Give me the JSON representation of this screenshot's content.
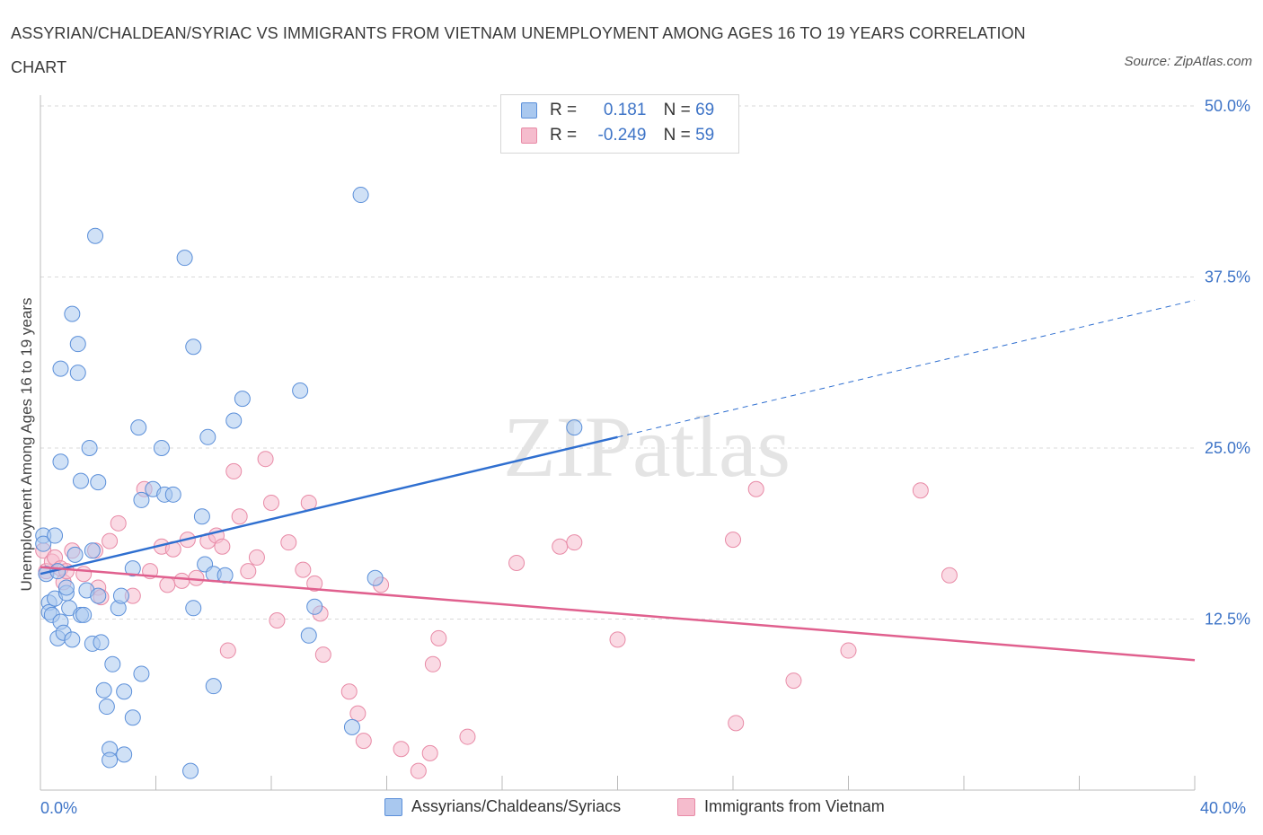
{
  "title": "ASSYRIAN/CHALDEAN/SYRIAC VS IMMIGRANTS FROM VIETNAM UNEMPLOYMENT AMONG AGES 16 TO 19 YEARS CORRELATION CHART",
  "source": "Source: ZipAtlas.com",
  "watermark": "ZIPatlas",
  "legend": {
    "series1": {
      "r_label": "R =",
      "r_value": "0.181",
      "n_label": "N =",
      "n_value": "69"
    },
    "series2": {
      "r_label": "R =",
      "r_value": "-0.249",
      "n_label": "N =",
      "n_value": "59"
    }
  },
  "colors": {
    "blue_fill": "#a9c8ef",
    "blue_stroke": "#5b8fd9",
    "blue_line": "#2f6fd0",
    "pink_fill": "#f5bccd",
    "pink_stroke": "#e88aa6",
    "pink_line": "#e0608e",
    "grid": "#d9d9d9",
    "axis_text": "#3e74c7"
  },
  "chart_data": {
    "type": "scatter",
    "title": "ASSYRIAN/CHALDEAN/SYRIAC VS IMMIGRANTS FROM VIETNAM UNEMPLOYMENT AMONG AGES 16 TO 19 YEARS CORRELATION CHART",
    "xlabel": "",
    "ylabel": "Unemployment Among Ages 16 to 19 years",
    "xlim": [
      0,
      40
    ],
    "ylim": [
      0,
      50
    ],
    "x_tick_labels": [
      "0.0%",
      "40.0%"
    ],
    "y_ticks": [
      12.5,
      25.0,
      37.5,
      50.0
    ],
    "y_tick_labels": [
      "12.5%",
      "25.0%",
      "37.5%",
      "50.0%"
    ],
    "grid": true,
    "legend_position": "top-center",
    "series": [
      {
        "name": "Assyrians/Chaldeans/Syriacs",
        "color": "#5b8fd9",
        "r": 0.181,
        "n": 69,
        "trend": {
          "x0": 0.0,
          "y0": 15.8,
          "x1": 20.0,
          "y1": 25.8,
          "dashed_to_x": 40.0,
          "dashed_to_y": 35.8
        },
        "points": [
          [
            0.1,
            18.6
          ],
          [
            0.1,
            18.0
          ],
          [
            0.2,
            15.8
          ],
          [
            0.3,
            13.7
          ],
          [
            0.3,
            13.0
          ],
          [
            0.4,
            12.8
          ],
          [
            0.5,
            18.6
          ],
          [
            0.5,
            14.0
          ],
          [
            0.6,
            11.1
          ],
          [
            0.6,
            16.0
          ],
          [
            0.7,
            12.3
          ],
          [
            0.7,
            24.0
          ],
          [
            0.7,
            30.8
          ],
          [
            0.8,
            11.5
          ],
          [
            0.9,
            14.4
          ],
          [
            0.9,
            14.8
          ],
          [
            1.0,
            13.3
          ],
          [
            1.1,
            11.0
          ],
          [
            1.1,
            34.8
          ],
          [
            1.2,
            17.2
          ],
          [
            1.3,
            32.6
          ],
          [
            1.3,
            30.5
          ],
          [
            1.4,
            12.8
          ],
          [
            1.4,
            22.6
          ],
          [
            1.5,
            12.8
          ],
          [
            1.6,
            14.6
          ],
          [
            1.7,
            25.0
          ],
          [
            1.8,
            17.5
          ],
          [
            1.8,
            10.7
          ],
          [
            1.9,
            40.5
          ],
          [
            2.0,
            14.2
          ],
          [
            2.0,
            22.5
          ],
          [
            2.1,
            10.8
          ],
          [
            2.2,
            7.3
          ],
          [
            2.3,
            6.1
          ],
          [
            2.4,
            3.0
          ],
          [
            2.4,
            2.2
          ],
          [
            2.5,
            9.2
          ],
          [
            2.7,
            13.3
          ],
          [
            2.8,
            14.2
          ],
          [
            2.9,
            7.2
          ],
          [
            2.9,
            2.6
          ],
          [
            3.2,
            5.3
          ],
          [
            3.2,
            16.2
          ],
          [
            3.4,
            26.5
          ],
          [
            3.5,
            8.5
          ],
          [
            3.5,
            21.2
          ],
          [
            3.9,
            22.0
          ],
          [
            4.2,
            25.0
          ],
          [
            4.3,
            21.6
          ],
          [
            4.6,
            21.6
          ],
          [
            5.0,
            38.9
          ],
          [
            5.2,
            1.4
          ],
          [
            5.3,
            32.4
          ],
          [
            5.3,
            13.3
          ],
          [
            5.6,
            20.0
          ],
          [
            5.7,
            16.5
          ],
          [
            5.8,
            25.8
          ],
          [
            6.0,
            7.6
          ],
          [
            6.0,
            15.8
          ],
          [
            6.4,
            15.7
          ],
          [
            6.7,
            27.0
          ],
          [
            7.0,
            28.6
          ],
          [
            9.0,
            29.2
          ],
          [
            9.3,
            11.3
          ],
          [
            9.5,
            13.4
          ],
          [
            10.8,
            4.6
          ],
          [
            11.1,
            43.5
          ],
          [
            11.6,
            15.5
          ],
          [
            18.5,
            26.5
          ]
        ]
      },
      {
        "name": "Immigrants from Vietnam",
        "color": "#e88aa6",
        "r": -0.249,
        "n": 59,
        "trend": {
          "x0": 0.0,
          "y0": 16.3,
          "x1": 40.0,
          "y1": 9.5
        },
        "points": [
          [
            0.1,
            17.5
          ],
          [
            0.2,
            16.0
          ],
          [
            0.4,
            16.7
          ],
          [
            0.5,
            17.0
          ],
          [
            0.7,
            16.2
          ],
          [
            0.8,
            15.2
          ],
          [
            0.9,
            16.0
          ],
          [
            1.1,
            17.5
          ],
          [
            1.5,
            15.8
          ],
          [
            1.9,
            17.5
          ],
          [
            2.0,
            14.8
          ],
          [
            2.1,
            14.1
          ],
          [
            2.4,
            18.2
          ],
          [
            2.7,
            19.5
          ],
          [
            3.2,
            14.2
          ],
          [
            3.6,
            22.0
          ],
          [
            3.8,
            16.0
          ],
          [
            4.2,
            17.8
          ],
          [
            4.4,
            15.0
          ],
          [
            4.6,
            17.6
          ],
          [
            4.9,
            15.3
          ],
          [
            5.1,
            18.3
          ],
          [
            5.4,
            15.5
          ],
          [
            5.8,
            18.2
          ],
          [
            6.1,
            18.6
          ],
          [
            6.3,
            17.8
          ],
          [
            6.5,
            10.2
          ],
          [
            6.7,
            23.3
          ],
          [
            6.9,
            20.0
          ],
          [
            7.2,
            16.0
          ],
          [
            7.5,
            17.0
          ],
          [
            7.8,
            24.2
          ],
          [
            8.0,
            21.0
          ],
          [
            8.2,
            12.4
          ],
          [
            8.6,
            18.1
          ],
          [
            9.1,
            16.1
          ],
          [
            9.3,
            21.0
          ],
          [
            9.5,
            15.1
          ],
          [
            9.7,
            12.9
          ],
          [
            9.8,
            9.9
          ],
          [
            10.7,
            7.2
          ],
          [
            11.0,
            5.6
          ],
          [
            11.2,
            3.6
          ],
          [
            11.8,
            15.0
          ],
          [
            12.5,
            3.0
          ],
          [
            13.1,
            1.4
          ],
          [
            13.5,
            2.7
          ],
          [
            13.6,
            9.2
          ],
          [
            13.8,
            11.1
          ],
          [
            14.8,
            3.9
          ],
          [
            16.5,
            16.6
          ],
          [
            18.0,
            17.8
          ],
          [
            18.5,
            18.1
          ],
          [
            20.0,
            11.0
          ],
          [
            24.0,
            18.3
          ],
          [
            24.1,
            4.9
          ],
          [
            24.8,
            22.0
          ],
          [
            26.1,
            8.0
          ],
          [
            28.0,
            10.2
          ],
          [
            30.5,
            21.9
          ],
          [
            31.5,
            15.7
          ]
        ]
      }
    ]
  },
  "bottom_legend": [
    "Assyrians/Chaldeans/Syriacs",
    "Immigrants from Vietnam"
  ]
}
